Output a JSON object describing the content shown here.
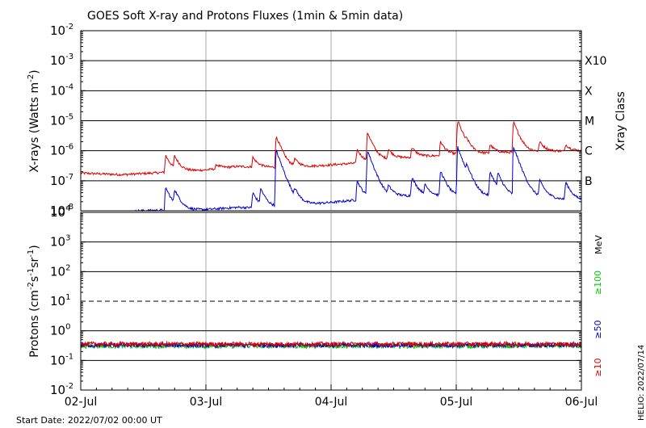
{
  "page": {
    "title": "GOES Soft X-ray and Protons Fluxes   (1min & 5min data)",
    "start_date": "Start Date: 2022/07/02 00:00 UT",
    "stamp": "HELIO: 2022/07/14"
  },
  "chart_data": [
    {
      "type": "line",
      "panel": "xray",
      "ylabel": "X-rays (Watts m⁻²)",
      "ylabel_parts": [
        "X-rays (Watts m",
        "-2",
        ")"
      ],
      "yscale": "log",
      "ylim": [
        1e-08,
        0.01
      ],
      "ytick_exponents": [
        -8,
        -7,
        -6,
        -5,
        -4,
        -3,
        -2
      ],
      "right_label": "Xray Class",
      "classes": [
        {
          "label": "X10",
          "value": 0.001
        },
        {
          "label": "X",
          "value": 0.0001
        },
        {
          "label": "M",
          "value": 1e-05
        },
        {
          "label": "C",
          "value": 1e-06
        },
        {
          "label": "B",
          "value": 1e-07
        }
      ],
      "x_domain_hours": [
        0,
        96
      ],
      "series": [
        {
          "name": "",
          "color": "#dd0000",
          "baseline_points": [
            [
              0,
              1.8e-07
            ],
            [
              8,
              1.6e-07
            ],
            [
              16,
              1.9e-07
            ],
            [
              24,
              2.3e-07
            ],
            [
              30,
              3e-07
            ],
            [
              40,
              2.7e-07
            ],
            [
              48,
              3.4e-07
            ],
            [
              54,
              4e-07
            ],
            [
              60,
              5.5e-07
            ],
            [
              66,
              6.5e-07
            ],
            [
              72,
              7.5e-07
            ],
            [
              80,
              8.5e-07
            ],
            [
              88,
              9.5e-07
            ],
            [
              96,
              1e-06
            ]
          ],
          "flares": [
            [
              16.3,
              7e-07
            ],
            [
              18,
              6e-07
            ],
            [
              26,
              3.5e-07
            ],
            [
              33,
              6e-07
            ],
            [
              37.5,
              3e-06
            ],
            [
              41,
              5e-07
            ],
            [
              53,
              1.1e-06
            ],
            [
              55,
              4e-06
            ],
            [
              59,
              1.1e-06
            ],
            [
              63.5,
              1.3e-06
            ],
            [
              69,
              2e-06
            ],
            [
              72.3,
              1e-05
            ],
            [
              74,
              1.3e-06
            ],
            [
              78.5,
              1.6e-06
            ],
            [
              83,
              9e-06
            ],
            [
              88,
              2e-06
            ],
            [
              93,
              1.6e-06
            ]
          ]
        },
        {
          "name": "",
          "color": "#0000cc",
          "start_hour": 10.5,
          "baseline_points": [
            [
              10.5,
              1e-08
            ],
            [
              16,
              1.05e-08
            ],
            [
              24,
              1.1e-08
            ],
            [
              30,
              1.3e-08
            ],
            [
              36,
              1.25e-08
            ],
            [
              42,
              1.6e-08
            ],
            [
              48,
              1.9e-08
            ],
            [
              54,
              2.4e-08
            ],
            [
              60,
              3e-08
            ],
            [
              66,
              3.3e-08
            ],
            [
              72,
              2.9e-08
            ],
            [
              78,
              3e-08
            ],
            [
              84,
              3e-08
            ],
            [
              90,
              2.6e-08
            ],
            [
              96,
              2.2e-08
            ]
          ],
          "flares": [
            [
              16.3,
              6e-08
            ],
            [
              18,
              4.5e-08
            ],
            [
              33,
              4e-08
            ],
            [
              34.5,
              5e-08
            ],
            [
              37.5,
              1e-06
            ],
            [
              41,
              4e-08
            ],
            [
              53,
              1e-07
            ],
            [
              55,
              1e-06
            ],
            [
              59,
              6e-08
            ],
            [
              63.5,
              1.3e-07
            ],
            [
              66,
              7e-08
            ],
            [
              69,
              2.1e-07
            ],
            [
              72.3,
              1.3e-06
            ],
            [
              74,
              1.8e-07
            ],
            [
              78.5,
              2e-07
            ],
            [
              80,
              1.5e-07
            ],
            [
              83,
              1.3e-06
            ],
            [
              88,
              1e-07
            ],
            [
              93,
              9e-08
            ]
          ]
        }
      ]
    },
    {
      "type": "line",
      "panel": "protons",
      "ylabel": "Protons (cm⁻²s⁻¹sr⁻¹)",
      "ylabel_parts": [
        "Protons (cm",
        "-2",
        "s",
        "-1",
        "sr",
        "-1",
        ")"
      ],
      "yscale": "log",
      "ylim": [
        0.01,
        10000.0
      ],
      "ytick_exponents": [
        -2,
        -1,
        0,
        1,
        2,
        3,
        4
      ],
      "threshold": 10,
      "right_label": "MeV",
      "x_categories": [
        "02-Jul",
        "03-Jul",
        "04-Jul",
        "05-Jul",
        "06-Jul"
      ],
      "series": [
        {
          "name": "≥10",
          "color": "#dd0000",
          "value": 0.36
        },
        {
          "name": "≥50",
          "color": "#0000cc",
          "value": 0.33
        },
        {
          "name": "≥100",
          "color": "#00cc00",
          "value": 0.31
        }
      ]
    }
  ]
}
